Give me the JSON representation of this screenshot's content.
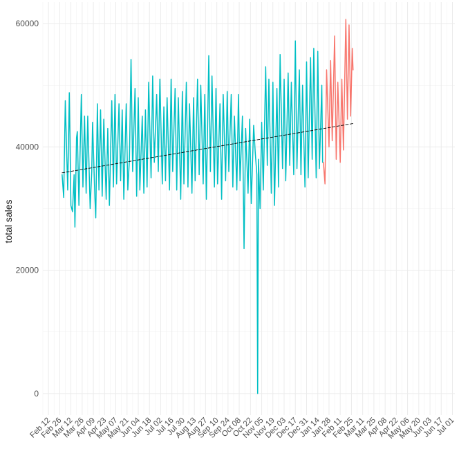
{
  "chart_data": {
    "type": "line",
    "title": "",
    "xlabel": "",
    "ylabel": "total sales",
    "grid": true,
    "legend": "none",
    "ylim": [
      -3500,
      63500
    ],
    "xlim": [
      "2017-02-05",
      "2018-07-04"
    ],
    "y_ticks": [
      0,
      20000,
      40000,
      60000
    ],
    "y_tick_labels": [
      "0",
      "20000",
      "40000",
      "60000"
    ],
    "x_ticks": [
      "2017-02-12",
      "2017-02-26",
      "2017-03-12",
      "2017-03-26",
      "2017-04-09",
      "2017-04-23",
      "2017-05-07",
      "2017-05-21",
      "2017-06-04",
      "2017-06-18",
      "2017-07-02",
      "2017-07-16",
      "2017-07-30",
      "2017-08-13",
      "2017-08-27",
      "2017-09-10",
      "2017-09-24",
      "2017-10-08",
      "2017-10-22",
      "2017-11-05",
      "2017-11-19",
      "2017-12-03",
      "2017-12-17",
      "2017-12-31",
      "2018-01-14",
      "2018-01-28",
      "2018-02-11",
      "2018-02-25",
      "2018-03-11",
      "2018-03-25",
      "2018-04-08",
      "2018-04-22",
      "2018-05-06",
      "2018-05-20",
      "2018-06-03",
      "2018-06-17",
      "2018-07-01"
    ],
    "x_tick_labels": [
      "Feb 12",
      "Feb 26",
      "Mar 12",
      "Mar 26",
      "Apr 09",
      "Apr 23",
      "May 07",
      "May 21",
      "Jun 04",
      "Jun 18",
      "Jul 02",
      "Jul 16",
      "Jul 30",
      "Aug 13",
      "Aug 27",
      "Sep 10",
      "Sep 24",
      "Oct 08",
      "Oct 22",
      "Nov 05",
      "Nov 19",
      "Dec 03",
      "Dec 17",
      "Dec 31",
      "Jan 14",
      "Jan 28",
      "Feb 11",
      "Feb 25",
      "Mar 11",
      "Mar 25",
      "Apr 08",
      "Apr 22",
      "May 06",
      "May 20",
      "Jun 03",
      "Jun 17",
      "Jul 01"
    ],
    "series": [
      {
        "color": "#00bfc4",
        "style": "solid",
        "points": [
          [
            "2017-03-01",
            35500
          ],
          [
            "2017-03-03",
            31800
          ],
          [
            "2017-03-05",
            47500
          ],
          [
            "2017-03-08",
            33000
          ],
          [
            "2017-03-10",
            48800
          ],
          [
            "2017-03-12",
            30500
          ],
          [
            "2017-03-14",
            29500
          ],
          [
            "2017-03-16",
            35500
          ],
          [
            "2017-03-17",
            27000
          ],
          [
            "2017-03-19",
            41500
          ],
          [
            "2017-03-20",
            42500
          ],
          [
            "2017-03-22",
            30500
          ],
          [
            "2017-03-25",
            48500
          ],
          [
            "2017-03-27",
            33500
          ],
          [
            "2017-03-29",
            45000
          ],
          [
            "2017-03-31",
            32500
          ],
          [
            "2017-04-02",
            45000
          ],
          [
            "2017-04-05",
            30000
          ],
          [
            "2017-04-07",
            36000
          ],
          [
            "2017-04-08",
            44000
          ],
          [
            "2017-04-11",
            31500
          ],
          [
            "2017-04-12",
            28500
          ],
          [
            "2017-04-14",
            47000
          ],
          [
            "2017-04-16",
            33000
          ],
          [
            "2017-04-18",
            46000
          ],
          [
            "2017-04-20",
            32000
          ],
          [
            "2017-04-22",
            44500
          ],
          [
            "2017-04-25",
            31500
          ],
          [
            "2017-04-27",
            43000
          ],
          [
            "2017-04-29",
            30500
          ],
          [
            "2017-05-02",
            47500
          ],
          [
            "2017-05-04",
            33500
          ],
          [
            "2017-05-06",
            48500
          ],
          [
            "2017-05-08",
            34000
          ],
          [
            "2017-05-11",
            47000
          ],
          [
            "2017-05-13",
            34500
          ],
          [
            "2017-05-15",
            46000
          ],
          [
            "2017-05-17",
            31500
          ],
          [
            "2017-05-20",
            47000
          ],
          [
            "2017-05-22",
            33000
          ],
          [
            "2017-05-24",
            38000
          ],
          [
            "2017-05-26",
            54200
          ],
          [
            "2017-05-28",
            36000
          ],
          [
            "2017-05-31",
            49500
          ],
          [
            "2017-06-02",
            32000
          ],
          [
            "2017-06-04",
            48000
          ],
          [
            "2017-06-06",
            33000
          ],
          [
            "2017-06-09",
            45000
          ],
          [
            "2017-06-11",
            32500
          ],
          [
            "2017-06-13",
            46000
          ],
          [
            "2017-06-15",
            33500
          ],
          [
            "2017-06-17",
            50500
          ],
          [
            "2017-06-20",
            35000
          ],
          [
            "2017-06-22",
            51500
          ],
          [
            "2017-06-24",
            37500
          ],
          [
            "2017-06-27",
            48500
          ],
          [
            "2017-06-29",
            36000
          ],
          [
            "2017-07-01",
            51000
          ],
          [
            "2017-07-04",
            34000
          ],
          [
            "2017-07-06",
            46500
          ],
          [
            "2017-07-08",
            34500
          ],
          [
            "2017-07-10",
            48000
          ],
          [
            "2017-07-13",
            33000
          ],
          [
            "2017-07-15",
            51000
          ],
          [
            "2017-07-17",
            36000
          ],
          [
            "2017-07-20",
            49500
          ],
          [
            "2017-07-22",
            33000
          ],
          [
            "2017-07-24",
            48000
          ],
          [
            "2017-07-27",
            31500
          ],
          [
            "2017-07-29",
            49000
          ],
          [
            "2017-07-31",
            34000
          ],
          [
            "2017-08-03",
            50500
          ],
          [
            "2017-08-05",
            33500
          ],
          [
            "2017-08-07",
            47000
          ],
          [
            "2017-08-10",
            32500
          ],
          [
            "2017-08-12",
            48000
          ],
          [
            "2017-08-14",
            34500
          ],
          [
            "2017-08-17",
            51000
          ],
          [
            "2017-08-19",
            35500
          ],
          [
            "2017-08-21",
            50000
          ],
          [
            "2017-08-24",
            34000
          ],
          [
            "2017-08-26",
            48500
          ],
          [
            "2017-08-28",
            31500
          ],
          [
            "2017-08-31",
            54800
          ],
          [
            "2017-09-02",
            36000
          ],
          [
            "2017-09-04",
            51500
          ],
          [
            "2017-09-07",
            33500
          ],
          [
            "2017-09-09",
            49500
          ],
          [
            "2017-09-11",
            34000
          ],
          [
            "2017-09-14",
            47000
          ],
          [
            "2017-09-16",
            31500
          ],
          [
            "2017-09-18",
            48500
          ],
          [
            "2017-09-21",
            34500
          ],
          [
            "2017-09-23",
            49000
          ],
          [
            "2017-09-25",
            36000
          ],
          [
            "2017-09-28",
            48500
          ],
          [
            "2017-09-30",
            33500
          ],
          [
            "2017-10-02",
            45000
          ],
          [
            "2017-10-05",
            33000
          ],
          [
            "2017-10-07",
            48500
          ],
          [
            "2017-10-09",
            34500
          ],
          [
            "2017-10-12",
            45000
          ],
          [
            "2017-10-14",
            23500
          ],
          [
            "2017-10-16",
            43000
          ],
          [
            "2017-10-19",
            32500
          ],
          [
            "2017-10-21",
            44500
          ],
          [
            "2017-10-23",
            30800
          ],
          [
            "2017-10-26",
            43500
          ],
          [
            "2017-10-28",
            39000
          ],
          [
            "2017-10-30",
            35500
          ],
          [
            "2017-10-31",
            0
          ],
          [
            "2017-11-01",
            38000
          ],
          [
            "2017-11-03",
            30000
          ],
          [
            "2017-11-05",
            44000
          ],
          [
            "2017-11-07",
            33000
          ],
          [
            "2017-11-10",
            53000
          ],
          [
            "2017-11-12",
            37000
          ],
          [
            "2017-11-14",
            51000
          ],
          [
            "2017-11-17",
            32500
          ],
          [
            "2017-11-19",
            50500
          ],
          [
            "2017-11-21",
            30500
          ],
          [
            "2017-11-24",
            49500
          ],
          [
            "2017-11-26",
            33500
          ],
          [
            "2017-11-28",
            55000
          ],
          [
            "2017-12-01",
            36500
          ],
          [
            "2017-12-03",
            51000
          ],
          [
            "2017-12-05",
            34500
          ],
          [
            "2017-12-08",
            52000
          ],
          [
            "2017-12-10",
            37000
          ],
          [
            "2017-12-12",
            50500
          ],
          [
            "2017-12-15",
            35500
          ],
          [
            "2017-12-17",
            57200
          ],
          [
            "2017-12-19",
            36500
          ],
          [
            "2017-12-22",
            52500
          ],
          [
            "2017-12-24",
            35500
          ],
          [
            "2017-12-26",
            50000
          ],
          [
            "2017-12-29",
            33500
          ],
          [
            "2017-12-31",
            53800
          ],
          [
            "2018-01-02",
            35000
          ],
          [
            "2018-01-05",
            54500
          ],
          [
            "2018-01-07",
            38000
          ],
          [
            "2018-01-09",
            56000
          ],
          [
            "2018-01-12",
            35000
          ],
          [
            "2018-01-14",
            55500
          ],
          [
            "2018-01-16",
            36500
          ],
          [
            "2018-01-19",
            50000
          ],
          [
            "2018-01-20",
            37500
          ]
        ]
      },
      {
        "color": "#f8766d",
        "style": "solid",
        "points": [
          [
            "2018-01-21",
            37500
          ],
          [
            "2018-01-23",
            34000
          ],
          [
            "2018-01-25",
            52500
          ],
          [
            "2018-01-28",
            40000
          ],
          [
            "2018-01-30",
            54000
          ],
          [
            "2018-02-01",
            41000
          ],
          [
            "2018-02-04",
            58000
          ],
          [
            "2018-02-06",
            38000
          ],
          [
            "2018-02-08",
            50500
          ],
          [
            "2018-02-11",
            37500
          ],
          [
            "2018-02-13",
            51000
          ],
          [
            "2018-02-15",
            39500
          ],
          [
            "2018-02-18",
            60700
          ],
          [
            "2018-02-20",
            44500
          ],
          [
            "2018-02-22",
            59800
          ],
          [
            "2018-02-24",
            45000
          ],
          [
            "2018-02-26",
            56000
          ],
          [
            "2018-02-27",
            52500
          ]
        ]
      },
      {
        "color": "#000000",
        "style": "dashed",
        "points": [
          [
            "2017-03-01",
            35800
          ],
          [
            "2018-02-27",
            43800
          ]
        ]
      }
    ]
  }
}
